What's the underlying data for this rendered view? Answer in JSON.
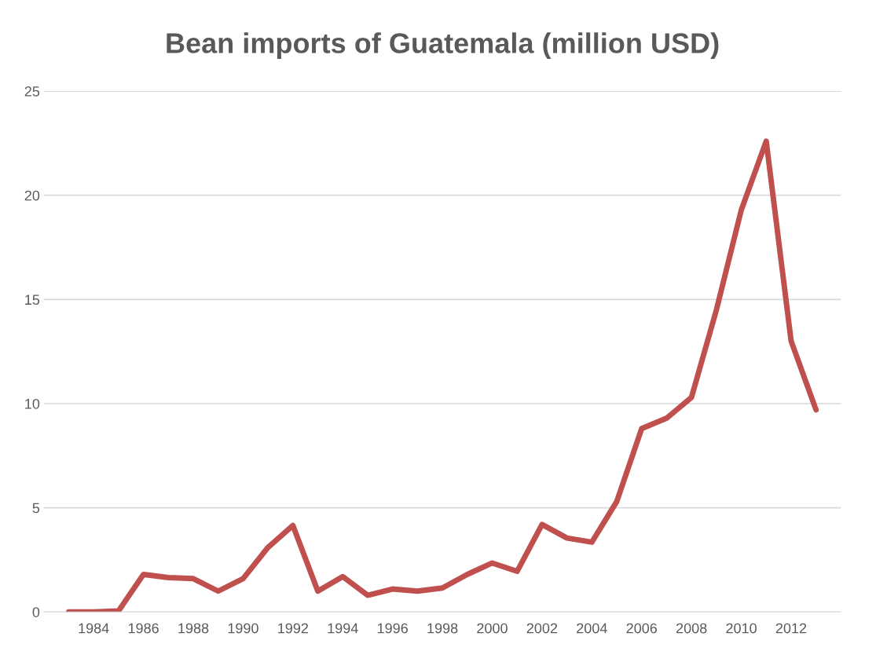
{
  "chart_data": {
    "type": "line",
    "title": "Bean imports of Guatemala (million USD)",
    "categories": [
      null,
      "1984",
      null,
      "1986",
      null,
      "1988",
      null,
      "1990",
      null,
      "1992",
      null,
      "1994",
      null,
      "1996",
      null,
      "1998",
      null,
      "2000",
      null,
      "2002",
      null,
      "2004",
      null,
      "2006",
      null,
      "2008",
      null,
      "2010",
      null,
      "2012",
      null
    ],
    "series": [
      {
        "color": "#c0504d",
        "values": [
          0,
          0,
          0.05,
          1.8,
          1.65,
          1.6,
          1.0,
          1.6,
          3.1,
          4.15,
          1.0,
          1.7,
          0.8,
          1.1,
          1.0,
          1.15,
          1.8,
          2.35,
          1.95,
          4.2,
          3.55,
          3.35,
          5.3,
          8.8,
          9.3,
          10.3,
          14.5,
          19.3,
          22.6,
          13.0,
          9.7
        ]
      }
    ],
    "ylim": [
      0,
      25
    ],
    "yticks": [
      0,
      5,
      10,
      15,
      20,
      25
    ],
    "grid": "y",
    "marker": "none",
    "line_style": "solid"
  }
}
